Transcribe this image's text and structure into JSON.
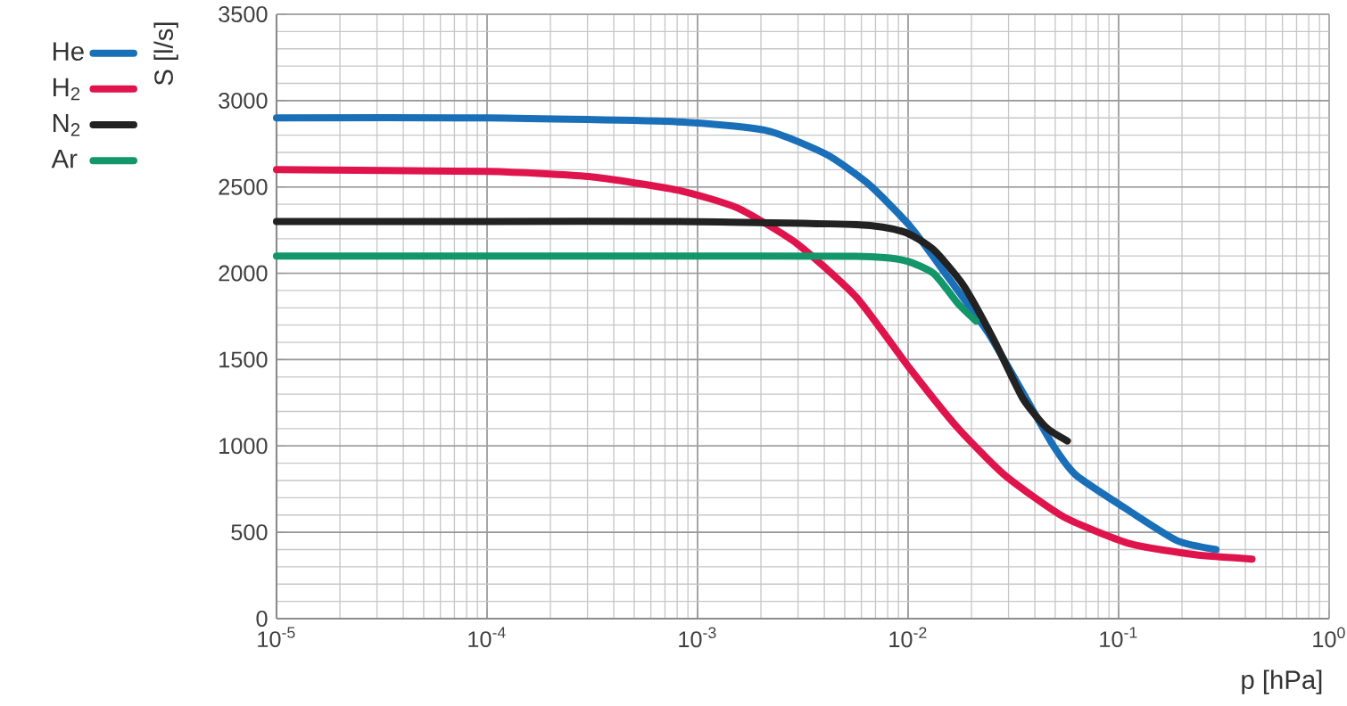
{
  "chart_data": {
    "type": "line",
    "xlabel": "p [hPa]",
    "ylabel": "S [l/s]",
    "log": "x",
    "grid": true,
    "legend": "top left",
    "marker": "none",
    "line_style": "solid",
    "xlim": [
      1e-05,
      1
    ],
    "ylim": [
      0,
      3500
    ],
    "xticks": [
      {
        "value": 1e-05,
        "label": "10$^{-5}$"
      },
      {
        "value": 0.0001,
        "label": "10$^{-4}$"
      },
      {
        "value": 0.001,
        "label": "10$^{-3}$"
      },
      {
        "value": 0.01,
        "label": "10$^{-2}$"
      },
      {
        "value": 0.1,
        "label": "10$^{-1}$"
      },
      {
        "value": 1,
        "label": "10$^{0}$"
      }
    ],
    "yticks": [
      0,
      500,
      1000,
      1500,
      2000,
      2500,
      3000,
      3500
    ],
    "series": [
      {
        "name": "He",
        "color": "#1a6fb9",
        "x": [
          1e-05,
          0.0001,
          0.000807,
          0.00214,
          0.0041,
          0.0065,
          0.0102,
          0.015,
          0.024,
          0.035,
          0.049,
          0.063,
          0.113,
          0.19,
          0.29
        ],
        "values": [
          2900,
          2900,
          2877,
          2826,
          2688,
          2516,
          2274,
          2000,
          1655,
          1311,
          1001,
          829,
          622,
          451,
          400
        ]
      },
      {
        "name": "H$_{2}$",
        "color": "#e0144c",
        "x": [
          1e-05,
          0.0001,
          0.000304,
          0.000807,
          0.00155,
          0.00297,
          0.00568,
          0.0102,
          0.0172,
          0.0289,
          0.055,
          0.113,
          0.231,
          0.43
        ],
        "values": [
          2600,
          2590,
          2560,
          2481,
          2378,
          2171,
          1861,
          1448,
          1105,
          829,
          588,
          434,
          370,
          345
        ]
      },
      {
        "name": "N$_{2}$",
        "color": "#222222",
        "x": [
          1e-05,
          0.0001,
          0.000807,
          0.00568,
          0.00955,
          0.0132,
          0.0183,
          0.0254,
          0.035,
          0.0455,
          0.0571
        ],
        "values": [
          2300,
          2300,
          2300,
          2282,
          2240,
          2137,
          1931,
          1621,
          1277,
          1105,
          1029
        ]
      },
      {
        "name": "Ar",
        "color": "#12966a",
        "x": [
          1e-05,
          0.0001,
          0.000807,
          0.00568,
          0.00955,
          0.0132,
          0.0172,
          0.021
        ],
        "values": [
          2100,
          2100,
          2100,
          2098,
          2075,
          2000,
          1827,
          1724
        ]
      }
    ]
  }
}
